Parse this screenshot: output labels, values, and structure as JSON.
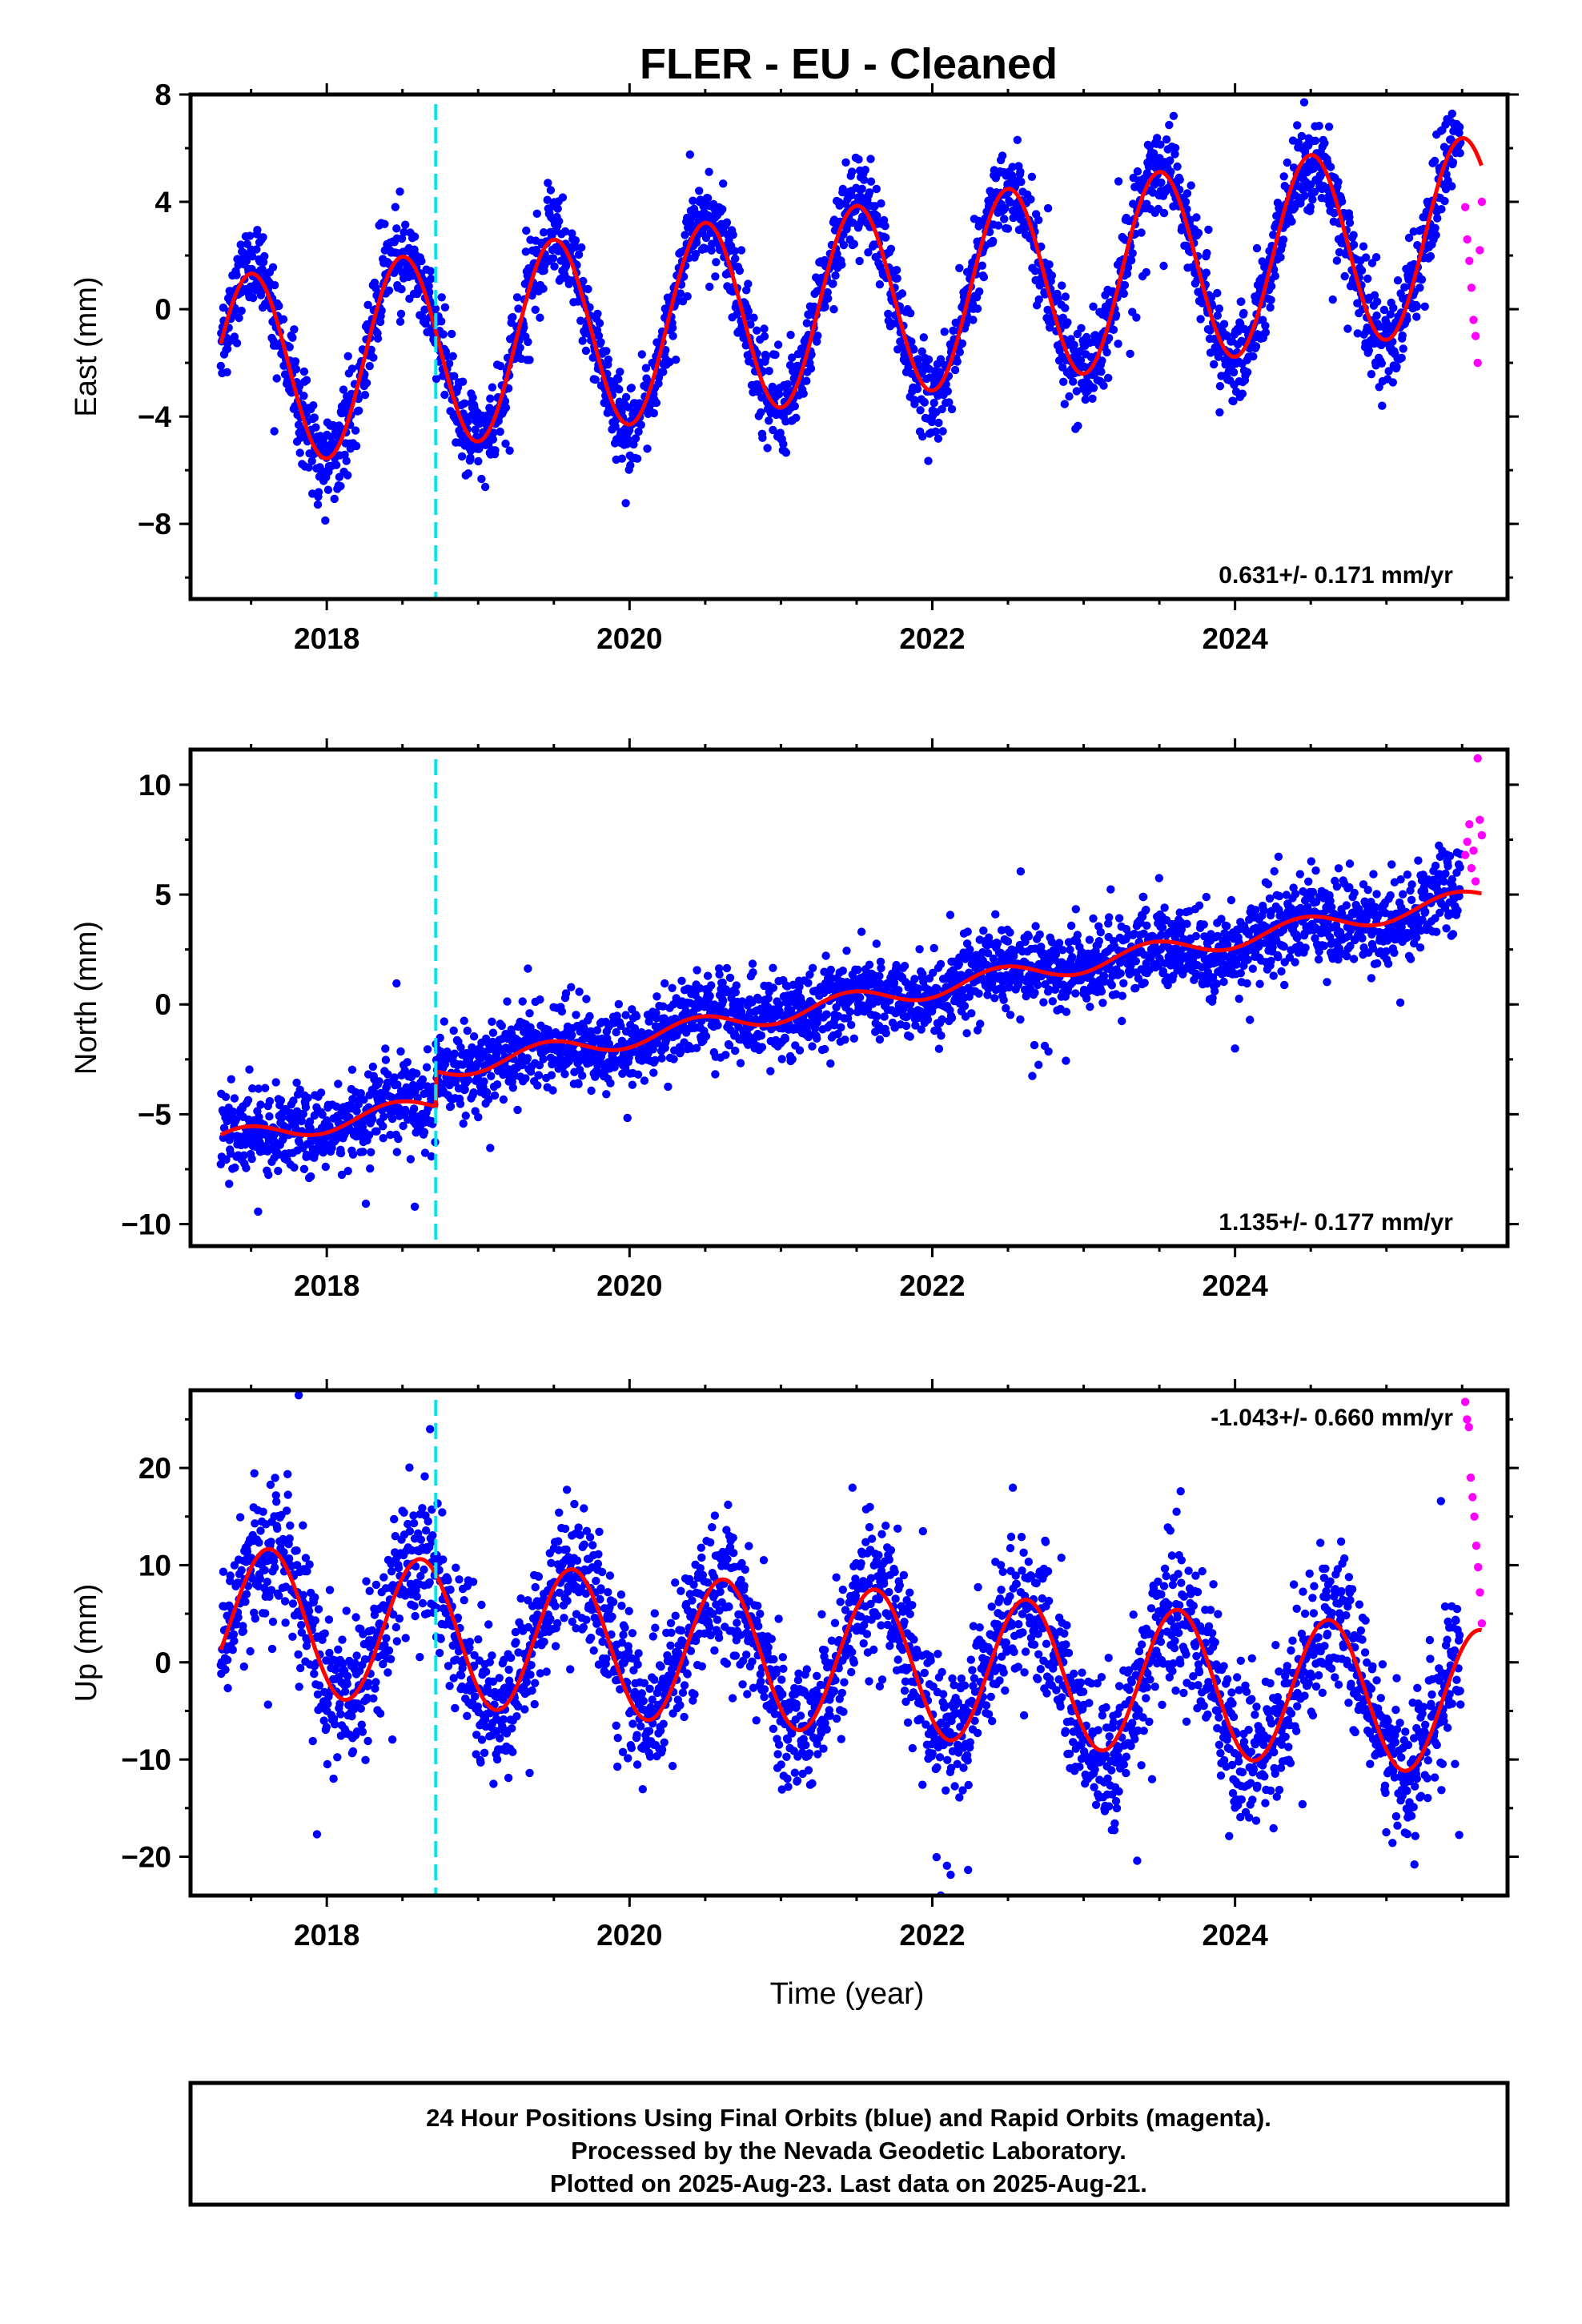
{
  "chart_data": {
    "type": "scatter",
    "title": "FLER  - EU - Cleaned",
    "xlabel": "Time (year)",
    "xlim": [
      2017.1,
      2025.8
    ],
    "x_ticks": [
      "2018",
      "2020",
      "2022",
      "2024"
    ],
    "x_tick_values": [
      2018,
      2020,
      2022,
      2024
    ],
    "equipment_change_line": {
      "x": 2018.72,
      "color": "#00e5ee"
    },
    "colors": {
      "final_orbits": "#0000ff",
      "rapid_orbits": "#ff00ff",
      "model_fit": "#ff0000",
      "event_line": "#00e5ee"
    },
    "grid": false,
    "panels": [
      {
        "component": "East",
        "ylabel": "East (mm)",
        "ylim": [
          -10.8,
          8.0
        ],
        "y_ticks": [
          "8",
          "4",
          "0",
          "−4",
          "−8"
        ],
        "y_tick_values": [
          8,
          4,
          0,
          -4,
          -8
        ],
        "rate_label": "0.631+/- 0.171 mm/yr",
        "rate_position": "bottom-right",
        "model": {
          "offset": -2.4,
          "rate": 0.631,
          "annual_amplitude": 3.6,
          "peak_year_fraction": 0.5,
          "jumps": [],
          "noise_sd": 0.8
        },
        "rapid_values": [
          3.8,
          2.6,
          1.8,
          0.8,
          -0.4,
          -1.0,
          -2.0,
          2.2,
          4.0
        ]
      },
      {
        "component": "North",
        "ylabel": "North (mm)",
        "ylim": [
          -11.0,
          11.6
        ],
        "y_ticks": [
          "10",
          "5",
          "0",
          "−5",
          "−10"
        ],
        "y_tick_values": [
          10,
          5,
          0,
          -5,
          -10
        ],
        "rate_label": "1.135+/- 0.177 mm/yr",
        "rate_position": "bottom-right",
        "model": {
          "offset": -6.2,
          "rate": 1.135,
          "annual_amplitude": 0.45,
          "peak_year_fraction": 0.45,
          "jumps": [
            {
              "x": 2018.72,
              "size": 1.6
            }
          ],
          "noise_sd": 0.9
        },
        "rapid_values": [
          6.8,
          7.4,
          8.2,
          6.2,
          7.0,
          5.6,
          11.2,
          8.4,
          7.7
        ]
      },
      {
        "component": "Up",
        "ylabel": "Up (mm)",
        "ylim": [
          -24.0,
          28.0
        ],
        "y_ticks": [
          "20",
          "10",
          "0",
          "−10",
          "−20"
        ],
        "y_tick_values": [
          20,
          10,
          0,
          -10,
          -20
        ],
        "rate_label": "-1.043+/- 0.660 mm/yr",
        "rate_position": "top-right",
        "model": {
          "offset": 4.5,
          "rate": -1.043,
          "annual_amplitude": 7.5,
          "peak_year_fraction": 0.62,
          "jumps": [],
          "noise_sd": 3.5
        },
        "rapid_values": [
          26.8,
          25.0,
          24.2,
          19.0,
          17.0,
          15.0,
          12.0,
          9.8,
          7.2,
          4.0
        ]
      }
    ],
    "footer": {
      "line1": "24 Hour Positions Using Final Orbits (blue) and Rapid Orbits (magenta).",
      "line2": "Processed by the Nevada Geodetic Laboratory.",
      "line3": "Plotted on 2025-Aug-23. Last data on 2025-Aug-21."
    }
  }
}
